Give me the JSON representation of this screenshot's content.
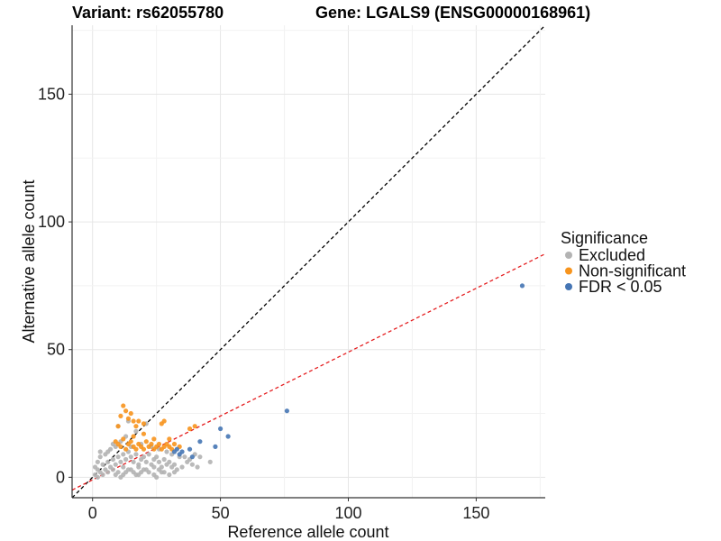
{
  "titles": {
    "variant": "Variant: rs62055780",
    "gene": "Gene: LGALS9 (ENSG00000168961)"
  },
  "chart_data": {
    "type": "scatter",
    "xlabel": "Reference allele count",
    "ylabel": "Alternative allele count",
    "xlim": [
      -8,
      177
    ],
    "ylim": [
      -8,
      177
    ],
    "x_ticks": [
      0,
      50,
      100,
      150
    ],
    "y_ticks": [
      0,
      50,
      100,
      150
    ],
    "grid": true,
    "legend": {
      "title": "Significance",
      "placement": "right",
      "entries": [
        {
          "label": "Excluded",
          "color": "#b3b3b3"
        },
        {
          "label": "Non-significant",
          "color": "#f7941d"
        },
        {
          "label": "FDR < 0.05",
          "color": "#4575b4"
        }
      ]
    },
    "reference_lines": [
      {
        "name": "y = x",
        "slope": 1,
        "intercept": 0,
        "color": "#000000",
        "dash": "dashed"
      },
      {
        "name": "fit",
        "slope": 0.5,
        "intercept": -1,
        "color": "#e41a1c",
        "dash": "dashed"
      }
    ],
    "series": [
      {
        "name": "Excluded",
        "color": "#b3b3b3",
        "points": [
          [
            1,
            1
          ],
          [
            2,
            3
          ],
          [
            3,
            2
          ],
          [
            4,
            5
          ],
          [
            5,
            3
          ],
          [
            6,
            6
          ],
          [
            7,
            4
          ],
          [
            8,
            7
          ],
          [
            9,
            5
          ],
          [
            10,
            8
          ],
          [
            11,
            6
          ],
          [
            12,
            9
          ],
          [
            13,
            7
          ],
          [
            14,
            10
          ],
          [
            15,
            8
          ],
          [
            16,
            6
          ],
          [
            17,
            9
          ],
          [
            18,
            5
          ],
          [
            19,
            7
          ],
          [
            20,
            8
          ],
          [
            21,
            6
          ],
          [
            22,
            9
          ],
          [
            23,
            5
          ],
          [
            24,
            7
          ],
          [
            25,
            8
          ],
          [
            26,
            6
          ],
          [
            27,
            4
          ],
          [
            28,
            7
          ],
          [
            29,
            5
          ],
          [
            30,
            6
          ],
          [
            31,
            4
          ],
          [
            32,
            5
          ],
          [
            33,
            3
          ],
          [
            35,
            4
          ],
          [
            37,
            6
          ],
          [
            39,
            5
          ],
          [
            41,
            4
          ],
          [
            46,
            6
          ],
          [
            2,
            0
          ],
          [
            4,
            1
          ],
          [
            6,
            2
          ],
          [
            8,
            3
          ],
          [
            10,
            2
          ],
          [
            12,
            1
          ],
          [
            14,
            3
          ],
          [
            16,
            2
          ],
          [
            18,
            1
          ],
          [
            20,
            3
          ],
          [
            22,
            2
          ],
          [
            24,
            1
          ],
          [
            26,
            3
          ],
          [
            28,
            2
          ],
          [
            30,
            1
          ],
          [
            32,
            2
          ],
          [
            5,
            9
          ],
          [
            7,
            11
          ],
          [
            9,
            12
          ],
          [
            11,
            14
          ],
          [
            13,
            16
          ],
          [
            15,
            12
          ],
          [
            10,
            20
          ],
          [
            14,
            22
          ],
          [
            17,
            18
          ],
          [
            21,
            21
          ],
          [
            3,
            8
          ],
          [
            6,
            10
          ],
          [
            8,
            13
          ],
          [
            19,
            13
          ],
          [
            23,
            12
          ],
          [
            26,
            11
          ],
          [
            29,
            10
          ],
          [
            31,
            9
          ],
          [
            34,
            8
          ],
          [
            36,
            8
          ],
          [
            38,
            7
          ],
          [
            40,
            9
          ],
          [
            42,
            8
          ],
          [
            1,
            4
          ],
          [
            2,
            6
          ],
          [
            3,
            10
          ],
          [
            12,
            4
          ],
          [
            15,
            3
          ],
          [
            18,
            4
          ],
          [
            21,
            3
          ],
          [
            24,
            4
          ],
          [
            27,
            2
          ],
          [
            9,
            1
          ],
          [
            11,
            0
          ],
          [
            13,
            2
          ],
          [
            17,
            1
          ],
          [
            19,
            2
          ],
          [
            25,
            0
          ]
        ]
      },
      {
        "name": "Non-significant",
        "color": "#f7941d",
        "points": [
          [
            12,
            28
          ],
          [
            13,
            26
          ],
          [
            15,
            25
          ],
          [
            11,
            24
          ],
          [
            14,
            23
          ],
          [
            16,
            22
          ],
          [
            10,
            20
          ],
          [
            18,
            22
          ],
          [
            20,
            21
          ],
          [
            27,
            21
          ],
          [
            28,
            22
          ],
          [
            17,
            20
          ],
          [
            9,
            14
          ],
          [
            10,
            13
          ],
          [
            11,
            12
          ],
          [
            12,
            15
          ],
          [
            13,
            11
          ],
          [
            14,
            13
          ],
          [
            15,
            14
          ],
          [
            16,
            12
          ],
          [
            17,
            11
          ],
          [
            18,
            13
          ],
          [
            19,
            12
          ],
          [
            20,
            11
          ],
          [
            21,
            14
          ],
          [
            22,
            12
          ],
          [
            23,
            13
          ],
          [
            24,
            11
          ],
          [
            25,
            12
          ],
          [
            26,
            13
          ],
          [
            27,
            11
          ],
          [
            28,
            12
          ],
          [
            29,
            13
          ],
          [
            30,
            12
          ],
          [
            31,
            11
          ],
          [
            32,
            13
          ],
          [
            16,
            16
          ],
          [
            20,
            17
          ],
          [
            24,
            15
          ],
          [
            30,
            15
          ],
          [
            34,
            12
          ],
          [
            38,
            19
          ],
          [
            40,
            20
          ]
        ]
      },
      {
        "name": "FDR < 0.05",
        "color": "#4575b4",
        "points": [
          [
            168,
            75
          ],
          [
            76,
            26
          ],
          [
            50,
            19
          ],
          [
            53,
            16
          ],
          [
            48,
            12
          ],
          [
            42,
            14
          ],
          [
            38,
            11
          ],
          [
            35,
            10
          ],
          [
            33,
            11
          ],
          [
            34,
            9
          ],
          [
            39,
            8
          ],
          [
            32,
            10
          ]
        ]
      }
    ]
  }
}
